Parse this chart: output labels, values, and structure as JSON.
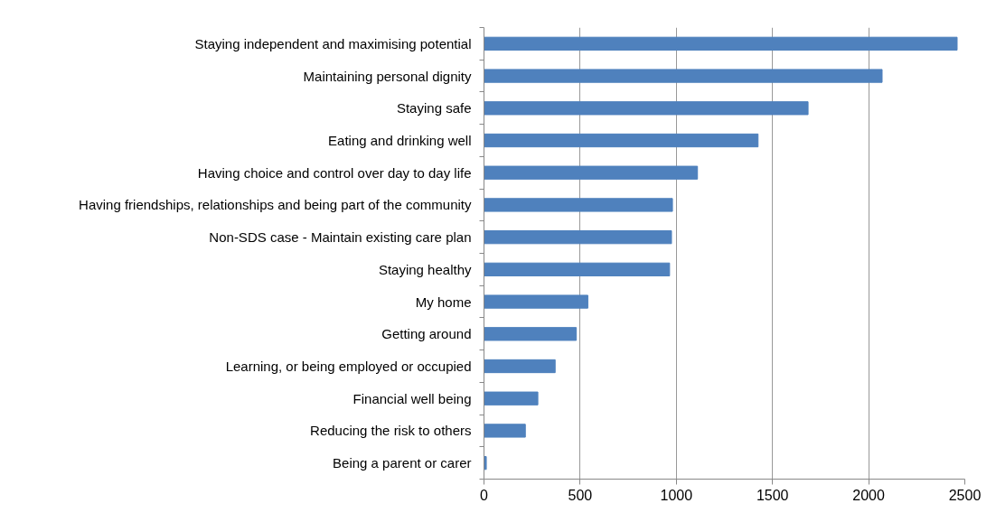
{
  "chart_data": {
    "type": "bar",
    "orientation": "horizontal",
    "categories": [
      "Staying independent and maximising potential",
      "Maintaining personal dignity",
      "Staying safe",
      "Eating and drinking well",
      "Having choice and control over day to day life",
      "Having friendships, relationships and being part of the community",
      "Non-SDS case - Maintain existing care plan",
      "Staying healthy",
      "My home",
      "Getting around",
      "Learning, or being employed or occupied",
      "Financial well being",
      "Reducing the risk to others",
      "Being a parent or carer"
    ],
    "values": [
      2460,
      2070,
      1685,
      1425,
      1110,
      980,
      975,
      965,
      540,
      480,
      370,
      280,
      215,
      12
    ],
    "color": "#4f81bd",
    "xlim": [
      0,
      2500
    ],
    "xticks": [
      0,
      500,
      1000,
      1500,
      2000,
      2500
    ],
    "grid": "x"
  }
}
